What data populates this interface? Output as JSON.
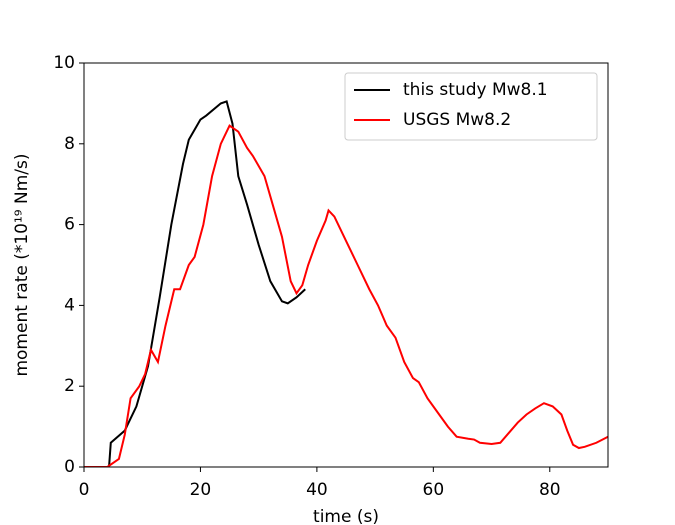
{
  "chart_data": {
    "type": "line",
    "xlabel": "time (s)",
    "ylabel": "moment rate (*10¹⁹ Nm/s)",
    "xlim": [
      0,
      90
    ],
    "ylim": [
      0,
      10
    ],
    "xticks": [
      0,
      20,
      40,
      60,
      80
    ],
    "yticks": [
      0,
      2,
      4,
      6,
      8,
      10
    ],
    "legend": "upper right",
    "series": [
      {
        "name": "this study Mw8.1",
        "color": "#000000",
        "x": [
          0,
          4.3,
          4.6,
          7,
          9,
          11,
          13,
          15,
          17,
          18,
          20,
          21,
          23.5,
          24.5,
          25.5,
          26.5,
          28,
          30,
          32,
          34,
          35,
          36.5,
          38
        ],
        "values": [
          0,
          0,
          0.6,
          0.9,
          1.5,
          2.5,
          4.2,
          6,
          7.5,
          8.1,
          8.6,
          8.7,
          9.0,
          9.05,
          8.5,
          7.2,
          6.5,
          5.5,
          4.6,
          4.1,
          4.05,
          4.2,
          4.4
        ]
      },
      {
        "name": "USGS Mw8.2",
        "color": "#ff0000",
        "x": [
          0,
          4,
          6,
          7,
          8,
          9.5,
          10.5,
          11.5,
          12.7,
          14,
          15.5,
          16.5,
          18,
          19,
          20.5,
          22,
          23.5,
          25,
          26.5,
          28,
          29,
          31,
          32,
          34,
          35.5,
          36.5,
          37.5,
          38.5,
          40,
          41.5,
          42,
          43,
          45,
          47,
          49,
          50.5,
          52,
          53.5,
          55,
          56.5,
          57.5,
          59,
          61,
          62.5,
          64,
          66,
          67,
          68,
          70,
          71.5,
          73,
          74.5,
          76,
          77.5,
          79,
          80.5,
          82,
          83,
          84,
          85,
          86,
          88,
          90
        ],
        "values": [
          0,
          0,
          0.2,
          0.8,
          1.7,
          2.0,
          2.3,
          2.9,
          2.6,
          3.5,
          4.4,
          4.4,
          5.0,
          5.2,
          6.0,
          7.2,
          8.0,
          8.45,
          8.3,
          7.9,
          7.7,
          7.2,
          6.7,
          5.7,
          4.6,
          4.3,
          4.5,
          5.0,
          5.6,
          6.1,
          6.35,
          6.2,
          5.6,
          5.0,
          4.4,
          4.0,
          3.5,
          3.2,
          2.6,
          2.2,
          2.1,
          1.7,
          1.3,
          1.0,
          0.75,
          0.7,
          0.68,
          0.6,
          0.57,
          0.6,
          0.85,
          1.1,
          1.3,
          1.45,
          1.58,
          1.5,
          1.3,
          0.9,
          0.55,
          0.47,
          0.5,
          0.6,
          0.75
        ]
      }
    ]
  }
}
